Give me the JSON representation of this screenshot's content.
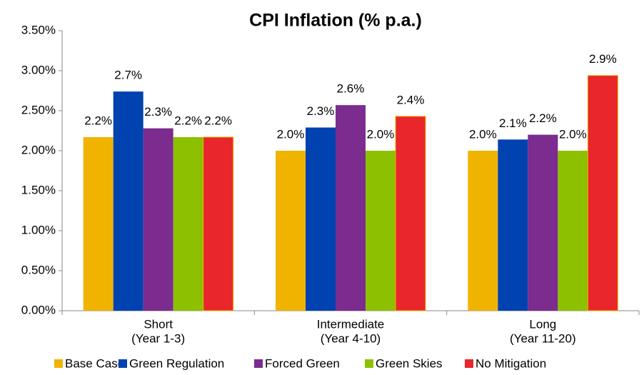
{
  "chart_data": {
    "type": "bar",
    "title": "CPI Inflation (% p.a.)",
    "categories": [
      [
        "Short",
        "(Year 1-3)"
      ],
      [
        "Intermediate",
        "(Year 4-10)"
      ],
      [
        "Long",
        "(Year 11-20)"
      ]
    ],
    "series": [
      {
        "name": "Base Case",
        "color": "#f0b400",
        "values": [
          2.17,
          2.0,
          2.0
        ],
        "value_labels": [
          "2.2%",
          "2.0%",
          "2.0%"
        ]
      },
      {
        "name": "Green Regulation",
        "color": "#0042b0",
        "values": [
          2.74,
          2.29,
          2.14
        ],
        "value_labels": [
          "2.7%",
          "2.3%",
          "2.1%"
        ]
      },
      {
        "name": "Forced Green",
        "color": "#7b2c8e",
        "values": [
          2.28,
          2.57,
          2.2
        ],
        "value_labels": [
          "2.3%",
          "2.6%",
          "2.2%"
        ]
      },
      {
        "name": "Green Skies",
        "color": "#8dc000",
        "values": [
          2.17,
          2.0,
          2.0
        ],
        "value_labels": [
          "2.2%",
          "2.0%",
          "2.0%"
        ]
      },
      {
        "name": "No Mitigation",
        "color": "#e8262b",
        "values": [
          2.17,
          2.43,
          2.94
        ],
        "value_labels": [
          "2.2%",
          "2.4%",
          "2.9%"
        ]
      }
    ],
    "ylim": [
      0,
      3.5
    ],
    "yticks": [
      {
        "value": 0,
        "label": "0.00%"
      },
      {
        "value": 0.5,
        "label": "0.50%"
      },
      {
        "value": 1,
        "label": "1.00%"
      },
      {
        "value": 1.5,
        "label": "1.50%"
      },
      {
        "value": 2,
        "label": "2.00%"
      },
      {
        "value": 2.5,
        "label": "2.50%"
      },
      {
        "value": 3,
        "label": "3.00%"
      },
      {
        "value": 3.5,
        "label": "3.50%"
      }
    ],
    "grid": false,
    "legend": "bottom"
  }
}
